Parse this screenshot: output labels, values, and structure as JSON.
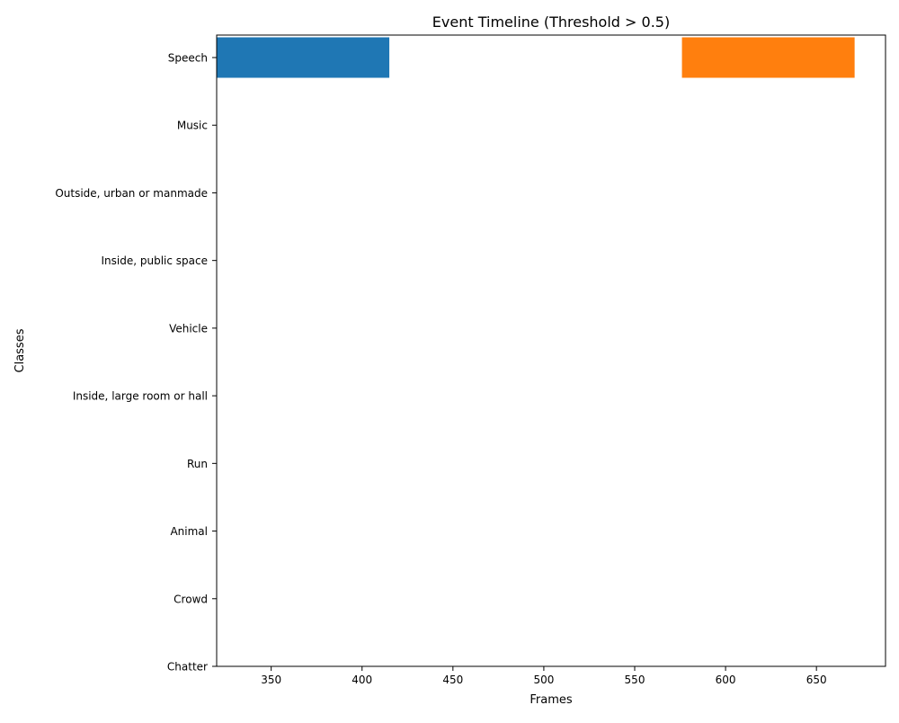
{
  "chart_data": {
    "type": "bar",
    "orientation": "horizontal-timeline",
    "title": "Event Timeline (Threshold > 0.5)",
    "xlabel": "Frames",
    "ylabel": "Classes",
    "xlim": [
      320,
      688
    ],
    "xticks": [
      350,
      400,
      450,
      500,
      550,
      600,
      650
    ],
    "categories": [
      "Speech",
      "Music",
      "Outside, urban or manmade",
      "Inside, public space",
      "Vehicle",
      "Inside, large room or hall",
      "Run",
      "Animal",
      "Crowd",
      "Chatter"
    ],
    "grid": false,
    "events": [
      {
        "category": "Speech",
        "start": 320,
        "end": 415,
        "color": "#1f77b4"
      },
      {
        "category": "Speech",
        "start": 576,
        "end": 671,
        "color": "#ff7f0e"
      }
    ]
  }
}
